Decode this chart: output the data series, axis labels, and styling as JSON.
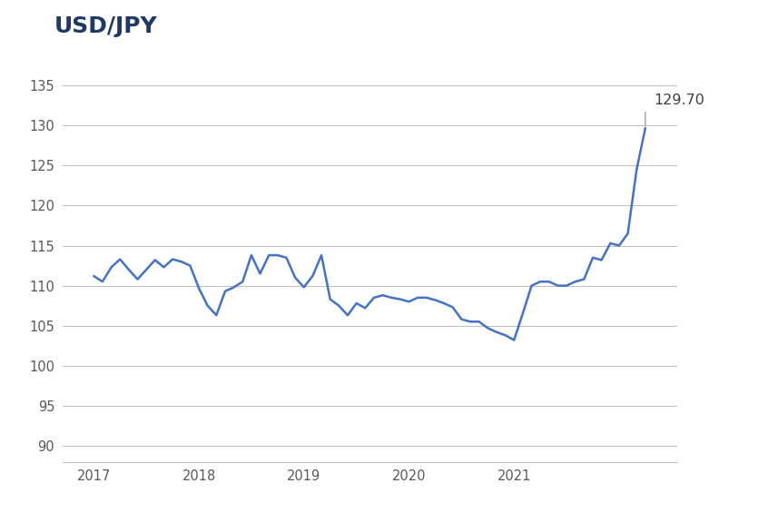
{
  "title": "USD/JPY",
  "title_color": "#1F3864",
  "line_color": "#4472C4",
  "annotation_line_color": "#A0A0A0",
  "background_color": "#ffffff",
  "grid_color": "#C0C0C0",
  "ylim": [
    88,
    138
  ],
  "yticks": [
    90,
    95,
    100,
    105,
    110,
    115,
    120,
    125,
    130,
    135
  ],
  "xlim": [
    2016.7,
    2022.55
  ],
  "xticks": [
    2017,
    2018,
    2019,
    2020,
    2021
  ],
  "last_value_label": "129.70",
  "x_values": [
    2017.0,
    2017.083,
    2017.167,
    2017.25,
    2017.333,
    2017.417,
    2017.5,
    2017.583,
    2017.667,
    2017.75,
    2017.833,
    2017.917,
    2018.0,
    2018.083,
    2018.167,
    2018.25,
    2018.333,
    2018.417,
    2018.5,
    2018.583,
    2018.667,
    2018.75,
    2018.833,
    2018.917,
    2019.0,
    2019.083,
    2019.167,
    2019.25,
    2019.333,
    2019.417,
    2019.5,
    2019.583,
    2019.667,
    2019.75,
    2019.833,
    2019.917,
    2020.0,
    2020.083,
    2020.167,
    2020.25,
    2020.333,
    2020.417,
    2020.5,
    2020.583,
    2020.667,
    2020.75,
    2020.833,
    2020.917,
    2021.0,
    2021.083,
    2021.167,
    2021.25,
    2021.333,
    2021.417,
    2021.5,
    2021.583,
    2021.667,
    2021.75,
    2021.833,
    2021.917,
    2022.0,
    2022.083,
    2022.167,
    2022.25
  ],
  "y_values": [
    111.2,
    110.5,
    112.3,
    113.3,
    112.0,
    110.8,
    112.0,
    113.2,
    112.3,
    113.3,
    113.0,
    112.5,
    109.7,
    107.5,
    106.3,
    109.3,
    109.8,
    110.5,
    113.8,
    111.5,
    113.8,
    113.8,
    113.5,
    111.0,
    109.8,
    111.2,
    113.8,
    108.3,
    107.5,
    106.3,
    107.8,
    107.2,
    108.5,
    108.8,
    108.5,
    108.3,
    108.0,
    108.5,
    108.5,
    108.2,
    107.8,
    107.3,
    105.8,
    105.5,
    105.5,
    104.7,
    104.2,
    103.8,
    103.2,
    106.5,
    110.0,
    110.5,
    110.5,
    110.0,
    110.0,
    110.5,
    110.8,
    113.5,
    113.2,
    115.3,
    115.0,
    116.5,
    124.5,
    129.7
  ]
}
